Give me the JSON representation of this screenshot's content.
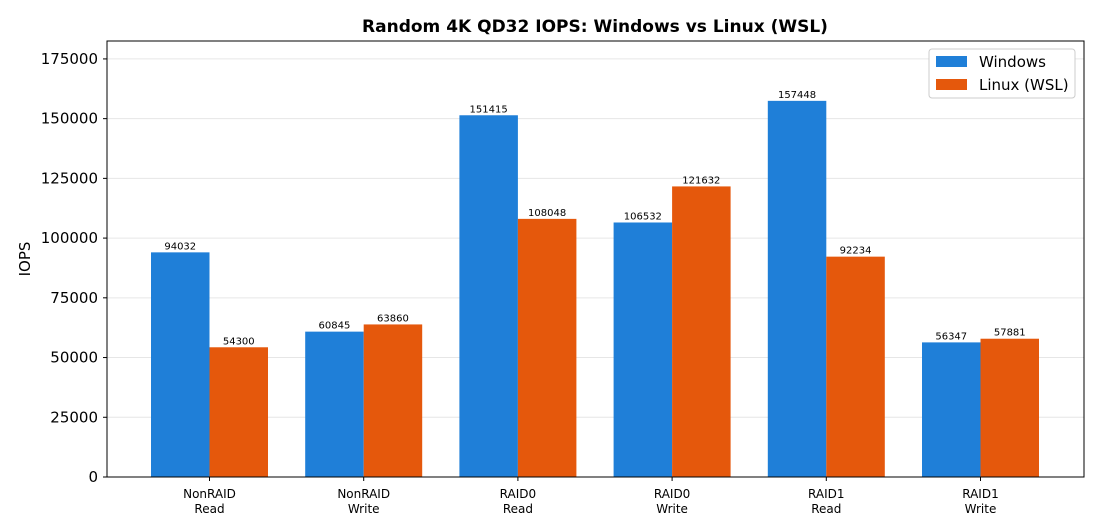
{
  "chart_data": {
    "type": "bar",
    "title": "Random 4K QD32 IOPS: Windows vs Linux (WSL)",
    "xlabel": "",
    "ylabel": "IOPS",
    "ylim": [
      0,
      182500
    ],
    "yticks": [
      0,
      25000,
      50000,
      75000,
      100000,
      125000,
      150000,
      175000
    ],
    "grid": "horizontal",
    "legend_position": "top-right",
    "categories": [
      [
        "NonRAID",
        "Read"
      ],
      [
        "NonRAID",
        "Write"
      ],
      [
        "RAID0",
        "Read"
      ],
      [
        "RAID0",
        "Write"
      ],
      [
        "RAID1",
        "Read"
      ],
      [
        "RAID1",
        "Write"
      ]
    ],
    "series": [
      {
        "name": "Windows",
        "color": "#1f7fd8",
        "values": [
          94032,
          60845,
          151415,
          106532,
          157448,
          56347
        ]
      },
      {
        "name": "Linux (WSL)",
        "color": "#e5580c",
        "values": [
          54300,
          63860,
          108048,
          121632,
          92234,
          57881
        ]
      }
    ]
  }
}
